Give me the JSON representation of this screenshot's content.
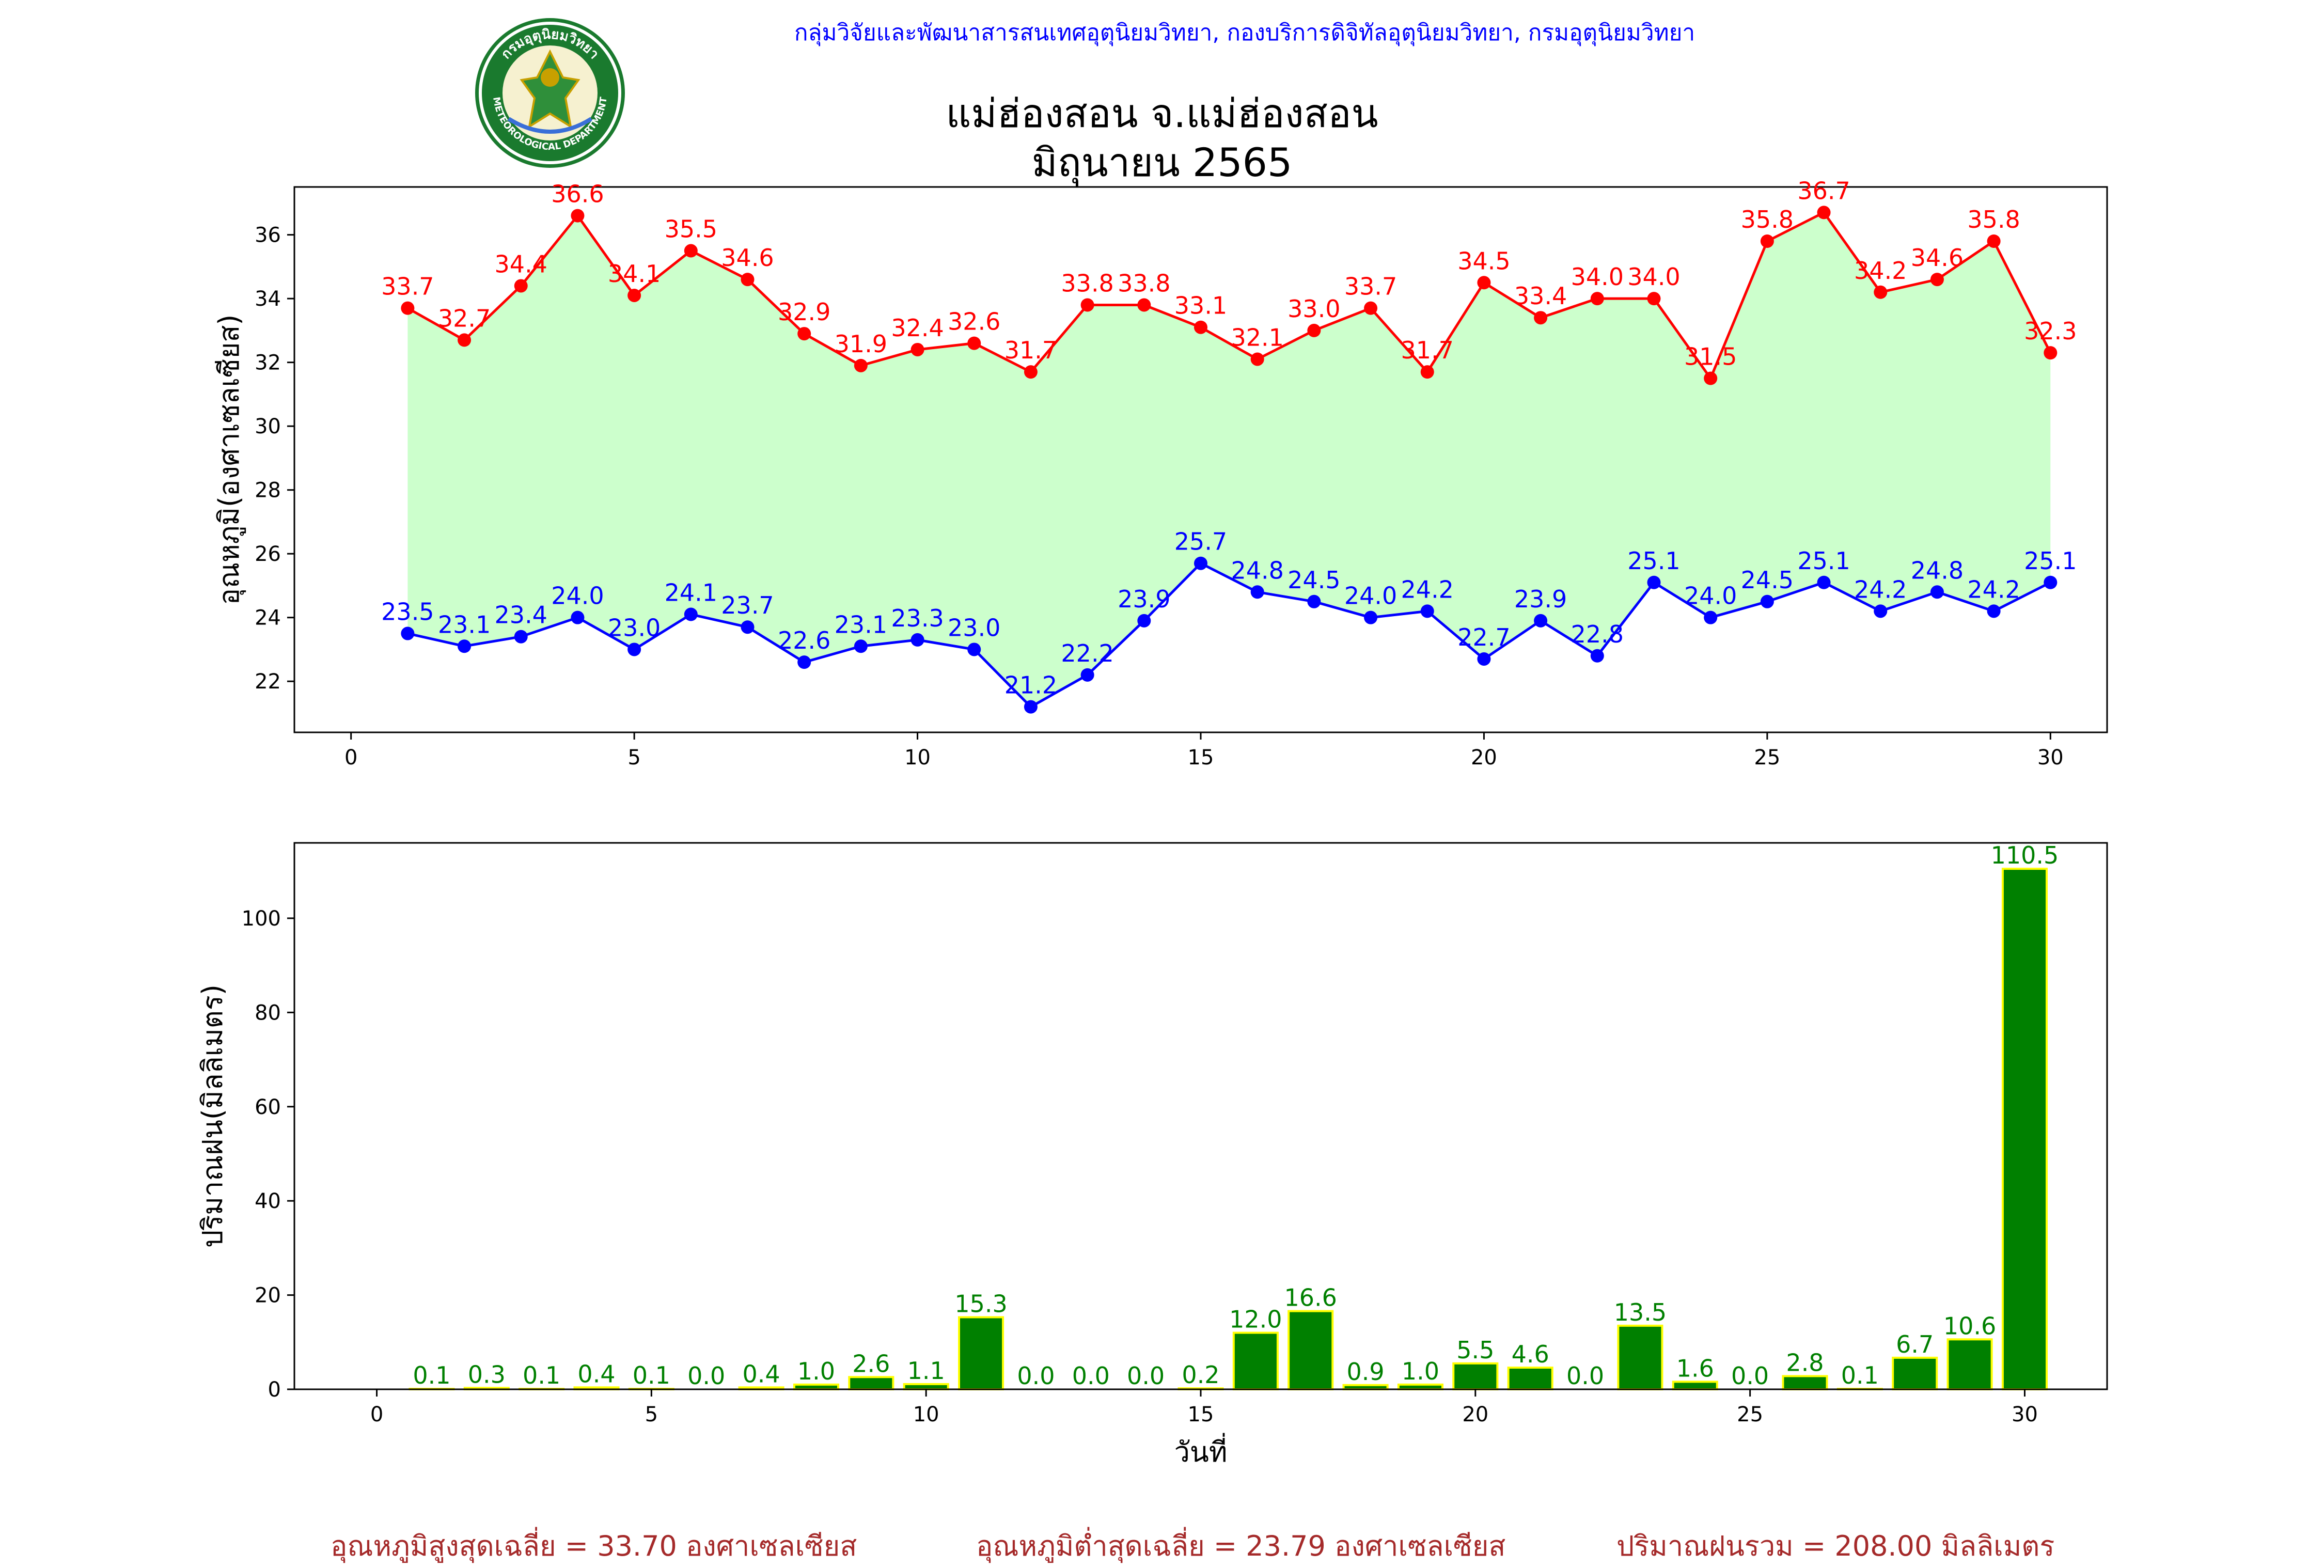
{
  "header": {
    "credit": "กลุ่มวิจัยและพัฒนาสารสนเทศอุตุนิยมวิทยา, กองบริการดิจิทัลอุตุนิยมวิทยา, กรมอุตุนิยมวิทยา",
    "title_line1": "แม่ฮ่องสอน จ.แม่ฮ่องสอน",
    "title_line2": "มิถุนายน 2565"
  },
  "logo": {
    "text_top": "กรมอุตุนิยมวิทยา",
    "text_bottom": "METEOROLOGICAL DEPARTMENT"
  },
  "colors": {
    "max_line": "#ff0000",
    "min_line": "#0000ff",
    "fill": "#ccffcc",
    "bar_fill": "#008000",
    "bar_edge": "#ffff00",
    "bar_label": "#008000",
    "footer": "#a52a2a"
  },
  "chart_data": [
    {
      "type": "line",
      "ylabel": "อุณหภูมิ(องศาเซลเซียส)",
      "xlabel": "",
      "xlim": [
        -1,
        31
      ],
      "ylim": [
        20.4,
        37.5
      ],
      "xticks": [
        0,
        5,
        10,
        15,
        20,
        25,
        30
      ],
      "yticks": [
        22,
        24,
        26,
        28,
        30,
        32,
        34,
        36
      ],
      "fill_between": true,
      "grid": false,
      "x": [
        1,
        2,
        3,
        4,
        5,
        6,
        7,
        8,
        9,
        10,
        11,
        12,
        13,
        14,
        15,
        16,
        17,
        18,
        19,
        20,
        21,
        22,
        23,
        24,
        25,
        26,
        27,
        28,
        29,
        30
      ],
      "series": [
        {
          "key": "max",
          "values": [
            33.7,
            32.7,
            34.4,
            36.6,
            34.1,
            35.5,
            34.6,
            32.9,
            31.9,
            32.4,
            32.6,
            31.7,
            33.8,
            33.8,
            33.1,
            32.1,
            33.0,
            33.7,
            31.7,
            34.5,
            33.4,
            34.0,
            34.0,
            31.5,
            35.8,
            36.7,
            34.2,
            34.6,
            35.8,
            32.3
          ]
        },
        {
          "key": "min",
          "values": [
            23.5,
            23.1,
            23.4,
            24.0,
            23.0,
            24.1,
            23.7,
            22.6,
            23.1,
            23.3,
            23.0,
            21.2,
            22.2,
            23.9,
            25.7,
            24.8,
            24.5,
            24.0,
            24.2,
            22.7,
            23.9,
            22.8,
            25.1,
            24.0,
            24.5,
            25.1,
            24.2,
            24.8,
            24.2,
            25.1
          ]
        }
      ]
    },
    {
      "type": "bar",
      "ylabel": "ปริมาณฝน(มิลลิเมตร)",
      "xlabel": "วันที่",
      "xlim": [
        -1.5,
        31.5
      ],
      "ylim": [
        0,
        116
      ],
      "xticks": [
        0,
        5,
        10,
        15,
        20,
        25,
        30
      ],
      "yticks": [
        0,
        20,
        40,
        60,
        80,
        100
      ],
      "grid": false,
      "x": [
        1,
        2,
        3,
        4,
        5,
        6,
        7,
        8,
        9,
        10,
        11,
        12,
        13,
        14,
        15,
        16,
        17,
        18,
        19,
        20,
        21,
        22,
        23,
        24,
        25,
        26,
        27,
        28,
        29,
        30
      ],
      "values": [
        0.1,
        0.3,
        0.1,
        0.4,
        0.1,
        0.0,
        0.4,
        1.0,
        2.6,
        1.1,
        15.3,
        0.0,
        0.0,
        0.0,
        0.2,
        12.0,
        16.6,
        0.9,
        1.0,
        5.5,
        4.6,
        0.0,
        13.5,
        1.6,
        0.0,
        2.8,
        0.1,
        6.7,
        10.6,
        110.5
      ]
    }
  ],
  "footer": {
    "avg_max": "อุณหภูมิสูงสุดเฉลี่ย = 33.70 องศาเซลเซียส",
    "avg_min": "อุณหภูมิต่ำสุดเฉลี่ย = 23.79 องศาเซลเซียส",
    "total_rain": "ปริมาณฝนรวม = 208.00 มิลลิเมตร"
  }
}
